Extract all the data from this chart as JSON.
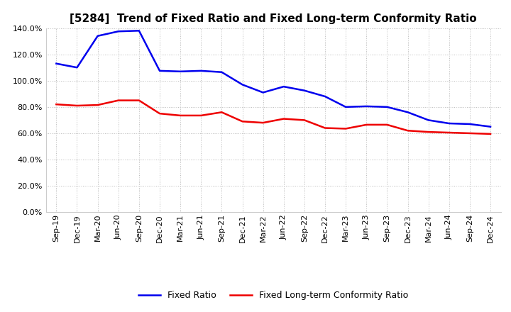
{
  "title": "[5284]  Trend of Fixed Ratio and Fixed Long-term Conformity Ratio",
  "title_fontsize": 11,
  "x_labels": [
    "Sep-19",
    "Dec-19",
    "Mar-20",
    "Jun-20",
    "Sep-20",
    "Dec-20",
    "Mar-21",
    "Jun-21",
    "Sep-21",
    "Dec-21",
    "Mar-22",
    "Jun-22",
    "Sep-22",
    "Dec-22",
    "Mar-23",
    "Jun-23",
    "Sep-23",
    "Dec-23",
    "Mar-24",
    "Jun-24",
    "Sep-24",
    "Dec-24"
  ],
  "fixed_ratio": [
    113.0,
    110.0,
    134.0,
    137.5,
    138.0,
    107.5,
    107.0,
    107.5,
    106.5,
    97.0,
    91.0,
    95.5,
    92.5,
    88.0,
    80.0,
    80.5,
    80.0,
    76.0,
    70.0,
    67.5,
    67.0,
    65.0
  ],
  "fixed_lt_ratio": [
    82.0,
    81.0,
    81.5,
    85.0,
    85.0,
    75.0,
    73.5,
    73.5,
    76.0,
    69.0,
    68.0,
    71.0,
    70.0,
    64.0,
    63.5,
    66.5,
    66.5,
    62.0,
    61.0,
    60.5,
    60.0,
    59.5
  ],
  "fixed_ratio_color": "#0000EE",
  "fixed_lt_ratio_color": "#EE0000",
  "ylim_min": 0,
  "ylim_max": 140,
  "yticks": [
    0,
    20,
    40,
    60,
    80,
    100,
    120,
    140
  ],
  "bg_color": "#FFFFFF",
  "grid_color": "#BBBBBB",
  "line_width": 1.8,
  "legend_fixed_ratio": "Fixed Ratio",
  "legend_fixed_lt_ratio": "Fixed Long-term Conformity Ratio",
  "tick_fontsize": 8,
  "legend_fontsize": 9
}
